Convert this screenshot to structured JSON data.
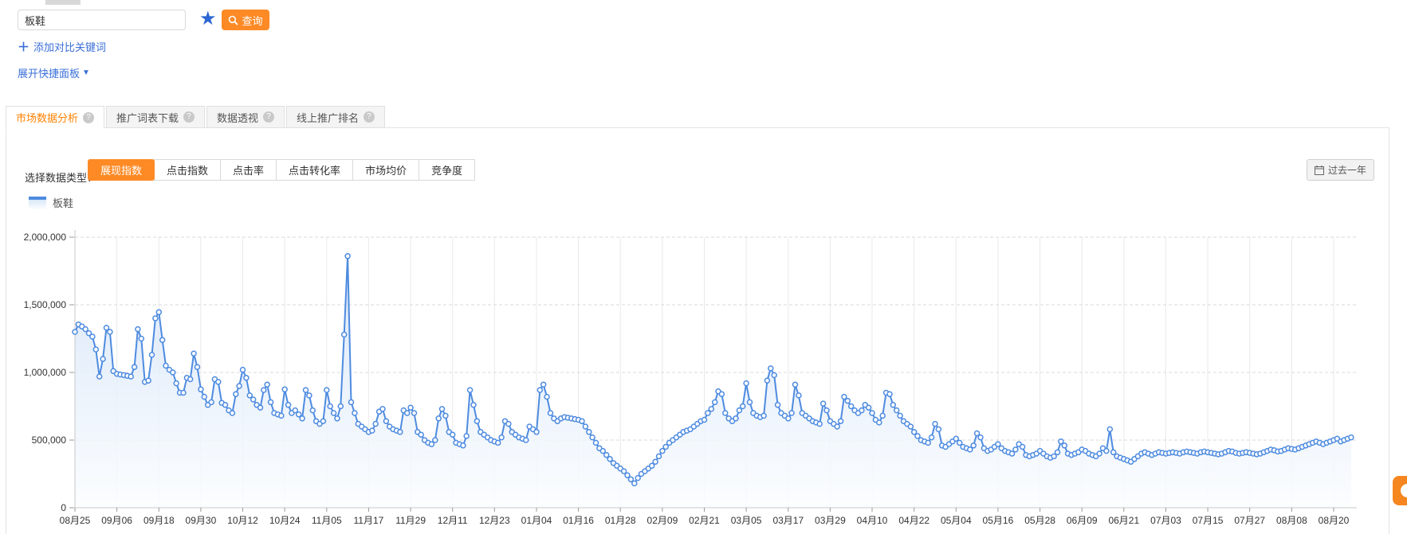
{
  "icons": {
    "star": "★",
    "plus": "＋",
    "caret_down": "▼",
    "help": "?"
  },
  "colors": {
    "accent_orange": "#fd8a25",
    "link_blue": "#3a6fd8",
    "series_line": "#4e8be0",
    "area_top": "#d3e3f7",
    "area_bottom": "#fbfdff",
    "grid_h": "#d9d9d9",
    "grid_v": "#e9e9e9",
    "axis": "#c8c8c8",
    "tick": "#999999",
    "label": "#333333"
  },
  "search": {
    "keyword": "板鞋",
    "query_label": "查询",
    "add_compare_label": "添加对比关键词",
    "expand_panel_label": "展开快捷面板"
  },
  "tabs": [
    {
      "label": "市场数据分析",
      "active": true
    },
    {
      "label": "推广词表下载",
      "active": false
    },
    {
      "label": "数据透视",
      "active": false
    },
    {
      "label": "线上推广排名",
      "active": false
    }
  ],
  "controls": {
    "select_type_label": "选择数据类型：",
    "types": [
      {
        "label": "展现指数",
        "active": true
      },
      {
        "label": "点击指数",
        "active": false
      },
      {
        "label": "点击率",
        "active": false
      },
      {
        "label": "点击转化率",
        "active": false
      },
      {
        "label": "市场均价",
        "active": false
      },
      {
        "label": "竞争度",
        "active": false
      }
    ],
    "date_range_label": "过去一年"
  },
  "legend": {
    "label": "板鞋"
  },
  "chart_data": {
    "type": "line",
    "title": "",
    "xlabel": "",
    "ylabel": "",
    "ylim": [
      0,
      2000000
    ],
    "y_ticks": [
      0,
      500000,
      1000000,
      1500000,
      2000000
    ],
    "y_tick_labels": [
      "0",
      "500,000",
      "1,000,000",
      "1,500,000",
      "2,000,000"
    ],
    "grid": true,
    "legend_position": "top-left",
    "marker": "circle",
    "area_fill": true,
    "x_tick_interval_days": 12,
    "x_tick_labels": [
      "08月25",
      "09月06",
      "09月18",
      "09月30",
      "10月12",
      "10月24",
      "11月05",
      "11月17",
      "11月29",
      "12月11",
      "12月23",
      "01月04",
      "01月16",
      "01月28",
      "02月09",
      "02月21",
      "03月05",
      "03月17",
      "03月29",
      "04月10",
      "04月22",
      "05月04",
      "05月16",
      "05月28",
      "06月09",
      "06月21",
      "07月03",
      "07月15",
      "07月27",
      "08月08",
      "08月20"
    ],
    "series": [
      {
        "name": "板鞋",
        "values": [
          1300000,
          1355000,
          1340000,
          1320000,
          1290000,
          1265000,
          1170000,
          970000,
          1100000,
          1330000,
          1300000,
          1010000,
          990000,
          985000,
          980000,
          975000,
          970000,
          1040000,
          1320000,
          1250000,
          930000,
          940000,
          1130000,
          1400000,
          1445000,
          1240000,
          1050000,
          1020000,
          1000000,
          920000,
          850000,
          850000,
          960000,
          950000,
          1140000,
          1040000,
          875000,
          820000,
          760000,
          780000,
          950000,
          930000,
          775000,
          760000,
          720000,
          700000,
          840000,
          900000,
          1020000,
          960000,
          830000,
          800000,
          760000,
          740000,
          870000,
          910000,
          780000,
          700000,
          690000,
          680000,
          875000,
          760000,
          700000,
          720000,
          690000,
          660000,
          870000,
          830000,
          720000,
          640000,
          620000,
          640000,
          870000,
          750000,
          700000,
          660000,
          750000,
          1280000,
          1860000,
          780000,
          700000,
          620000,
          600000,
          580000,
          560000,
          570000,
          620000,
          710000,
          730000,
          640000,
          600000,
          580000,
          570000,
          560000,
          720000,
          700000,
          740000,
          700000,
          560000,
          540000,
          500000,
          480000,
          470000,
          500000,
          660000,
          730000,
          680000,
          560000,
          540000,
          480000,
          470000,
          460000,
          530000,
          870000,
          760000,
          640000,
          560000,
          540000,
          520000,
          500000,
          490000,
          480000,
          520000,
          640000,
          620000,
          560000,
          540000,
          520000,
          510000,
          500000,
          600000,
          580000,
          560000,
          870000,
          910000,
          820000,
          700000,
          660000,
          640000,
          660000,
          670000,
          665000,
          660000,
          655000,
          650000,
          640000,
          600000,
          560000,
          520000,
          480000,
          440000,
          420000,
          390000,
          360000,
          330000,
          310000,
          290000,
          270000,
          240000,
          210000,
          180000,
          220000,
          250000,
          270000,
          290000,
          310000,
          340000,
          380000,
          420000,
          450000,
          480000,
          500000,
          520000,
          540000,
          560000,
          570000,
          580000,
          600000,
          620000,
          640000,
          650000,
          700000,
          730000,
          780000,
          860000,
          840000,
          700000,
          660000,
          640000,
          660000,
          720000,
          750000,
          920000,
          780000,
          700000,
          680000,
          670000,
          680000,
          940000,
          1030000,
          980000,
          760000,
          700000,
          680000,
          660000,
          700000,
          910000,
          830000,
          700000,
          680000,
          660000,
          640000,
          630000,
          620000,
          770000,
          720000,
          640000,
          620000,
          600000,
          640000,
          820000,
          790000,
          750000,
          720000,
          700000,
          720000,
          760000,
          740000,
          700000,
          650000,
          630000,
          680000,
          850000,
          840000,
          760000,
          720000,
          680000,
          640000,
          620000,
          600000,
          560000,
          530000,
          500000,
          490000,
          480000,
          520000,
          620000,
          580000,
          460000,
          450000,
          470000,
          490000,
          510000,
          480000,
          450000,
          440000,
          430000,
          460000,
          550000,
          520000,
          440000,
          420000,
          430000,
          450000,
          470000,
          440000,
          420000,
          410000,
          400000,
          430000,
          470000,
          450000,
          390000,
          380000,
          390000,
          400000,
          420000,
          400000,
          380000,
          370000,
          380000,
          410000,
          490000,
          460000,
          400000,
          390000,
          400000,
          410000,
          430000,
          420000,
          400000,
          390000,
          380000,
          400000,
          440000,
          420000,
          580000,
          410000,
          380000,
          370000,
          360000,
          350000,
          340000,
          360000,
          380000,
          400000,
          410000,
          400000,
          390000,
          400000,
          410000,
          405000,
          400000,
          405000,
          410000,
          405000,
          400000,
          410000,
          415000,
          410000,
          405000,
          400000,
          410000,
          415000,
          410000,
          405000,
          400000,
          395000,
          400000,
          410000,
          420000,
          415000,
          405000,
          400000,
          405000,
          410000,
          405000,
          400000,
          395000,
          400000,
          410000,
          420000,
          430000,
          425000,
          415000,
          420000,
          430000,
          440000,
          435000,
          430000,
          440000,
          450000,
          460000,
          470000,
          480000,
          490000,
          480000,
          470000,
          480000,
          490000,
          500000,
          510000,
          490000,
          500000,
          510000,
          520000
        ]
      }
    ]
  }
}
